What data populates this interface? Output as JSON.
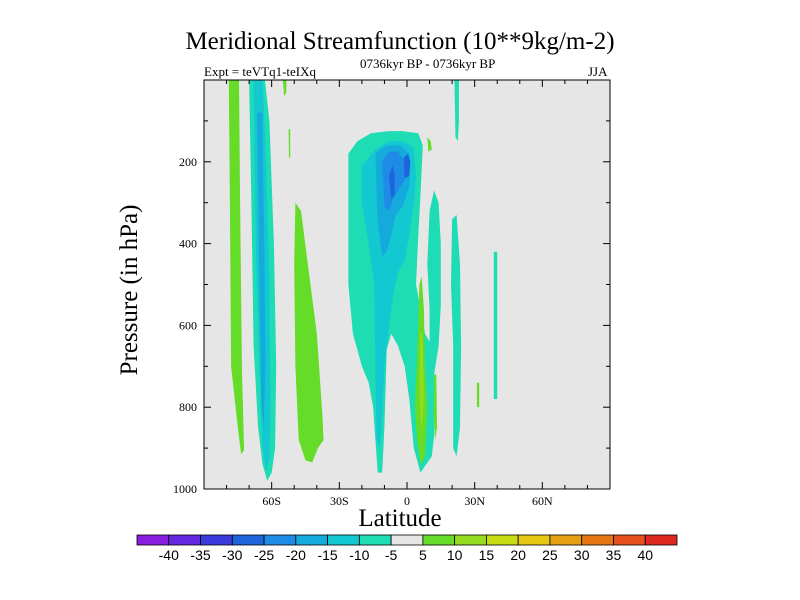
{
  "chart_data": {
    "type": "contour",
    "title": "Meridional Streamfunction (10**9kg/m-2)",
    "subtitle": "0736kyr BP - 0736kyr BP",
    "experiment": "Expt = teVTq1-teIXq",
    "season": "JJA",
    "xlabel": "Latitude",
    "ylabel": "Pressure (in hPa)",
    "xlim": [
      -90,
      90
    ],
    "ylim": [
      1000,
      0
    ],
    "x_ticks": [
      {
        "value": -60,
        "label": "60S"
      },
      {
        "value": -30,
        "label": "30S"
      },
      {
        "value": 0,
        "label": "0"
      },
      {
        "value": 30,
        "label": "30N"
      },
      {
        "value": 60,
        "label": "60N"
      }
    ],
    "y_ticks": [
      {
        "value": 200,
        "label": "200"
      },
      {
        "value": 400,
        "label": "400"
      },
      {
        "value": 600,
        "label": "600"
      },
      {
        "value": 800,
        "label": "800"
      },
      {
        "value": 1000,
        "label": "1000"
      }
    ],
    "colorbar": {
      "labels": [
        "-40",
        "-35",
        "-30",
        "-25",
        "-20",
        "-15",
        "-10",
        "-5",
        "5",
        "10",
        "15",
        "20",
        "25",
        "30",
        "35",
        "40"
      ],
      "colors": [
        "#8a1ee0",
        "#6428e0",
        "#3c3cdc",
        "#1e64dc",
        "#1e8ce6",
        "#14aadc",
        "#14c8d2",
        "#1edcb4",
        "#e6e6e6",
        "#64dc28",
        "#96dc1e",
        "#c8dc14",
        "#e6c814",
        "#e6a014",
        "#e67814",
        "#e6501e",
        "#dc281e"
      ]
    },
    "regions": [
      {
        "level": "5",
        "lat": [
          -78,
          -75,
          -74,
          -73,
          -72
        ],
        "p": [
          0,
          0,
          900,
          920,
          900
        ],
        "comment": "thin green column near 75S"
      },
      {
        "level": "-5",
        "lat": [
          -69,
          -62,
          -58,
          -59,
          -62,
          -67
        ],
        "p": [
          0,
          0,
          300,
          900,
          970,
          900
        ]
      },
      {
        "level": "-10",
        "lat": [
          -68,
          -64,
          -61,
          -61,
          -63,
          -66
        ],
        "p": [
          0,
          0,
          300,
          800,
          950,
          800
        ]
      },
      {
        "level": "-15",
        "lat": [
          -66,
          -65,
          -63,
          -63,
          -64
        ],
        "p": [
          100,
          100,
          500,
          850,
          850
        ]
      }
    ]
  }
}
